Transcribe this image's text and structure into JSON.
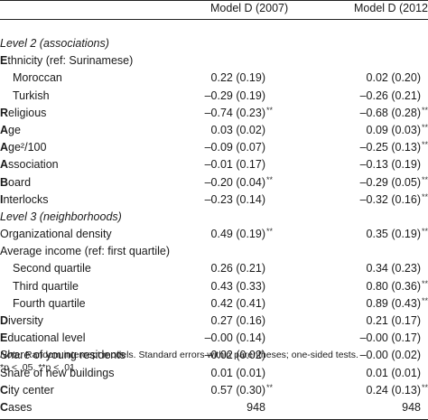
{
  "header": {
    "col1": "Model D (2007)",
    "col2": "Model D (2012)"
  },
  "rows": [
    {
      "label": "Level 2 (associations)",
      "type": "section",
      "v1": "",
      "s1": "",
      "v2": "",
      "s2": ""
    },
    {
      "label": "Ethnicity (ref: Surinamese)",
      "type": "cap",
      "v1": "",
      "s1": "",
      "v2": "",
      "s2": ""
    },
    {
      "label": "Moroccan",
      "type": "sub",
      "v1": "0.22 (0.19)",
      "s1": "",
      "v2": "0.02 (0.20)",
      "s2": ""
    },
    {
      "label": "Turkish",
      "type": "sub",
      "v1": "–0.29 (0.19)",
      "s1": "",
      "v2": "–0.26 (0.21)",
      "s2": ""
    },
    {
      "label": "Religious",
      "type": "cap",
      "v1": "–0.74 (0.23)",
      "s1": "**",
      "v2": "–0.68 (0.28)",
      "s2": "**"
    },
    {
      "label": "Age",
      "type": "cap",
      "v1": "0.03 (0.02)",
      "s1": "",
      "v2": "0.09 (0.03)",
      "s2": "**"
    },
    {
      "label": "Age²/100",
      "type": "cap",
      "v1": "–0.09 (0.07)",
      "s1": "",
      "v2": "–0.25 (0.13)",
      "s2": "**"
    },
    {
      "label": "Association",
      "type": "cap",
      "v1": "–0.01 (0.17)",
      "s1": "",
      "v2": "–0.13 (0.19)",
      "s2": ""
    },
    {
      "label": "Board",
      "type": "cap",
      "v1": "–0.20 (0.04)",
      "s1": "**",
      "v2": "–0.29 (0.05)",
      "s2": "**"
    },
    {
      "label": "Interlocks",
      "type": "cap",
      "v1": "–0.23 (0.14)",
      "s1": "",
      "v2": "–0.32 (0.16)",
      "s2": "**"
    },
    {
      "label": "Level 3 (neighborhoods)",
      "type": "section",
      "v1": "",
      "s1": "",
      "v2": "",
      "s2": ""
    },
    {
      "label": "Organizational density",
      "type": "plain",
      "v1": "0.49 (0.19)",
      "s1": "**",
      "v2": "0.35 (0.19)",
      "s2": "**"
    },
    {
      "label": "Average income (ref: first quartile)",
      "type": "plain",
      "v1": "",
      "s1": "",
      "v2": "",
      "s2": ""
    },
    {
      "label": "Second quartile",
      "type": "sub",
      "v1": "0.26 (0.21)",
      "s1": "",
      "v2": "0.34 (0.23)",
      "s2": ""
    },
    {
      "label": "Third quartile",
      "type": "sub",
      "v1": "0.43 (0.33)",
      "s1": "",
      "v2": "0.80 (0.36)",
      "s2": "**"
    },
    {
      "label": "Fourth quartile",
      "type": "sub",
      "v1": "0.42 (0.41)",
      "s1": "",
      "v2": "0.89 (0.43)",
      "s2": "**"
    },
    {
      "label": "Diversity",
      "type": "cap",
      "v1": "0.27 (0.16)",
      "s1": "",
      "v2": "0.21 (0.17)",
      "s2": ""
    },
    {
      "label": "Educational level",
      "type": "cap",
      "v1": "–0.00 (0.14)",
      "s1": "",
      "v2": "–0.00 (0.17)",
      "s2": ""
    },
    {
      "label": "Share of young residents",
      "type": "plain",
      "v1": "–0.02 (0.02)",
      "s1": "",
      "v2": "–0.00 (0.02)",
      "s2": ""
    },
    {
      "label": "Share of new buildings",
      "type": "plain",
      "v1": "0.01 (0.01)",
      "s1": "",
      "v2": "0.01 (0.01)",
      "s2": ""
    },
    {
      "label": "City center",
      "type": "cap",
      "v1": "0.57 (0.30)",
      "s1": "**",
      "v2": "0.24 (0.13)",
      "s2": "**"
    },
    {
      "label": "Cases",
      "type": "cap",
      "v1": "948",
      "s1": "",
      "v2": "948",
      "s2": ""
    }
  ],
  "note": {
    "prefix": "Note.",
    "text": " Random intercept models. Standard errors within parentheses; one-sided tests.",
    "sig": "*p < .05. **p < .01."
  }
}
